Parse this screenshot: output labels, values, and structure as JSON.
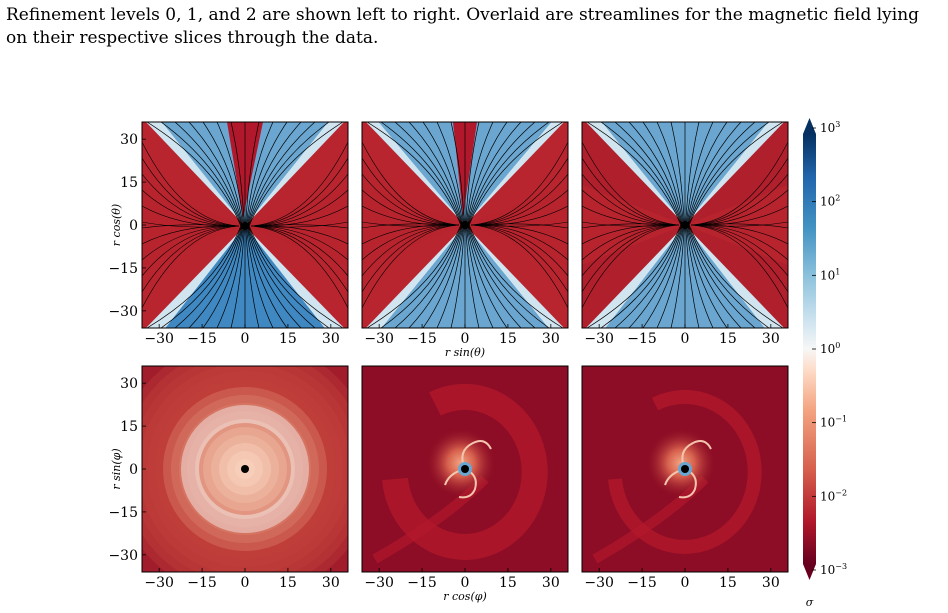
{
  "caption": {
    "line1": "Refinement levels 0, 1, and 2 are shown left to right. Overlaid are streamlines for the magnetic field lying",
    "line2": "on their respective slices through the data."
  },
  "figure": {
    "top_row": {
      "ylabel": "r cos(θ)",
      "xlabel": "r sin(θ)",
      "panels": [
        "refinement level 0",
        "refinement level 1",
        "refinement level 2"
      ]
    },
    "bottom_row": {
      "ylabel": "r sin(φ)",
      "xlabel": "r cos(φ)",
      "panels": [
        "refinement level 0",
        "refinement level 1",
        "refinement level 2"
      ]
    },
    "axis_ticks": [
      "−30",
      "−15",
      "0",
      "15",
      "30"
    ],
    "colorbar": {
      "label": "σ",
      "scale": "log",
      "ticks": [
        {
          "base": "10",
          "exp": "3",
          "value": 1000
        },
        {
          "base": "10",
          "exp": "2",
          "value": 100
        },
        {
          "base": "10",
          "exp": "1",
          "value": 10
        },
        {
          "base": "10",
          "exp": "0",
          "value": 1
        },
        {
          "base": "10",
          "exp": "−1",
          "value": 0.1
        },
        {
          "base": "10",
          "exp": "−2",
          "value": 0.01
        },
        {
          "base": "10",
          "exp": "−3",
          "value": 0.001
        }
      ],
      "colors": [
        "#67001f",
        "#b2182b",
        "#d6604d",
        "#f4a582",
        "#fddbc7",
        "#f7f7f7",
        "#d1e5f0",
        "#92c5de",
        "#4393c3",
        "#2166ac",
        "#053061"
      ]
    }
  }
}
